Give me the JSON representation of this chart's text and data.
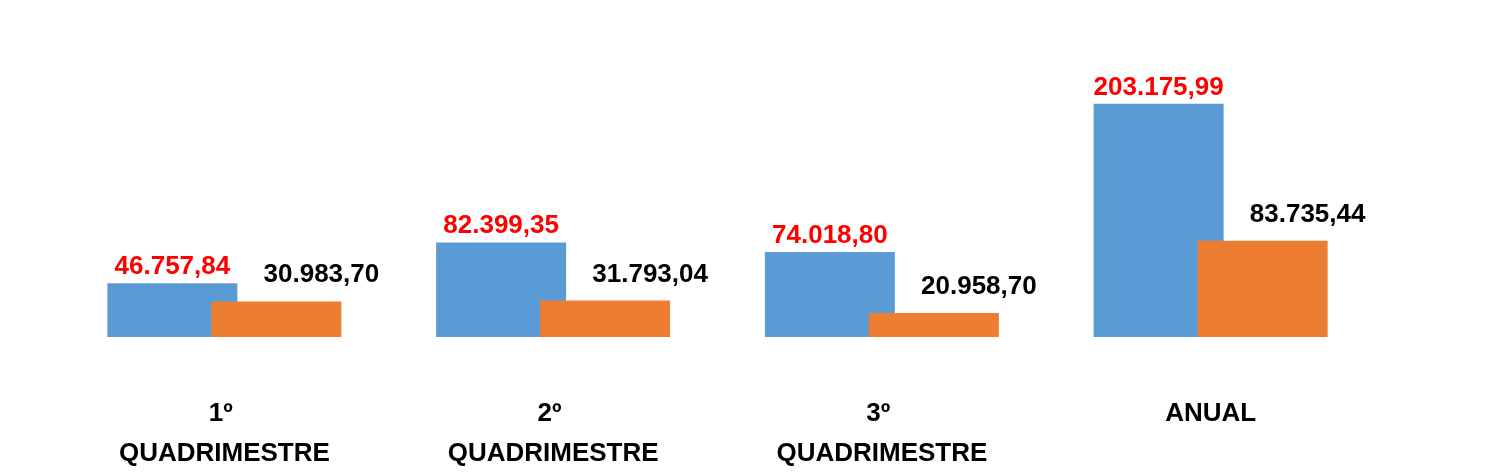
{
  "chart_data": {
    "type": "bar",
    "categories": [
      "1º QUADRIMESTRE",
      "2º QUADRIMESTRE",
      "3º QUADRIMESTRE",
      "ANUAL"
    ],
    "series": [
      {
        "color": "#5b9bd5",
        "values": [
          46757.84,
          82399.35,
          74018.8,
          203175.99
        ],
        "value_labels": [
          "46.757,84",
          "82.399,35",
          "74.018,80",
          "203.175,99"
        ]
      },
      {
        "color": "#ed7d31",
        "values": [
          30983.7,
          31793.04,
          20958.7,
          83735.44
        ],
        "value_labels": [
          "30.983,70",
          "31.793,04",
          "20.958,70",
          "83.735,44"
        ]
      }
    ],
    "grid": false
  }
}
